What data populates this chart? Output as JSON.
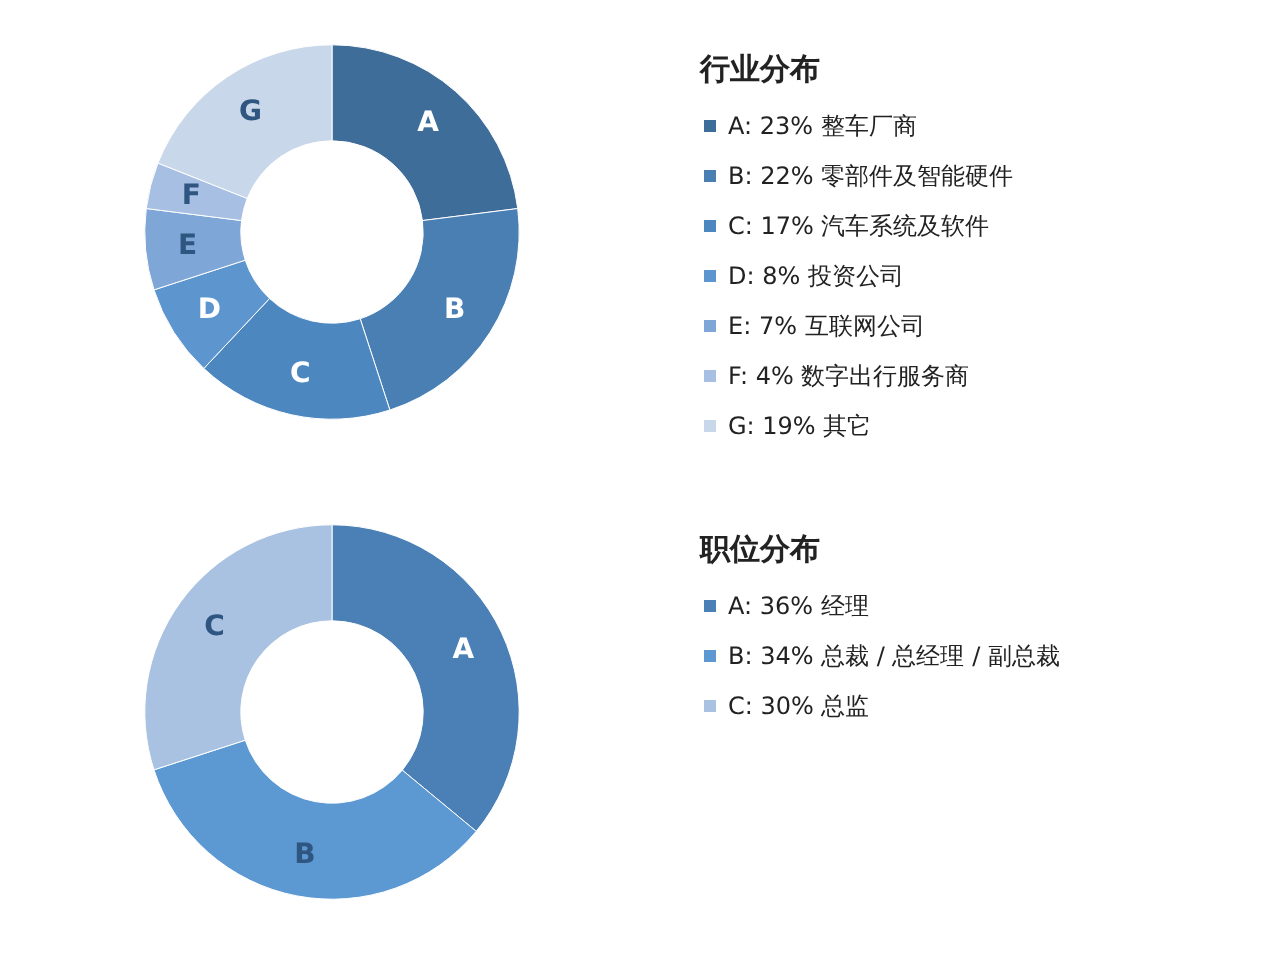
{
  "chart_data": [
    {
      "type": "donut",
      "title": "行业分布",
      "legend": "right",
      "categories": [
        "A: 23% 整车厂商",
        "B: 22% 零部件及智能硬件",
        "C: 17% 汽车系统及软件",
        "D: 8% 投资公司",
        "E: 7% 互联网公司",
        "F: 4% 数字出行服务商",
        "G: 19% 其它"
      ],
      "values": [
        23,
        22,
        17,
        8,
        7,
        4,
        19
      ],
      "value_labels": [
        "A",
        "B",
        "C",
        "D",
        "E",
        "F",
        "G"
      ],
      "colors": [
        "#3f6d9a",
        "#4a7fb4",
        "#4c87c0",
        "#5d95cf",
        "#7ea6d6",
        "#a6bfe2",
        "#c9d7ea"
      ]
    },
    {
      "type": "donut",
      "title": "职位分布",
      "legend": "right",
      "categories": [
        "A: 36% 经理",
        "B: 34% 总裁 / 总经理 / 副总裁",
        "C: 30% 总监"
      ],
      "values": [
        36,
        34,
        30
      ],
      "value_labels": [
        "A",
        "B",
        "C"
      ],
      "colors": [
        "#4a80b5",
        "#5c98d2",
        "#aac2e2"
      ]
    }
  ]
}
